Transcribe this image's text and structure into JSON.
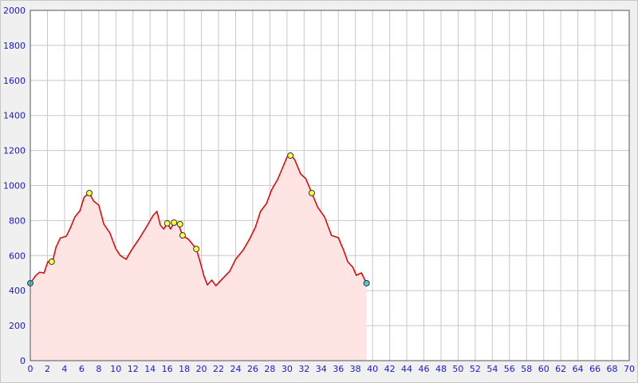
{
  "chart_data": {
    "type": "area",
    "x": [
      0,
      0.65,
      1.1,
      1.6,
      2.05,
      2.6,
      3.0,
      3.5,
      4.2,
      4.7,
      5.2,
      5.8,
      6.3,
      6.9,
      7.4,
      8.0,
      8.6,
      9.3,
      10.0,
      10.5,
      11.2,
      11.8,
      12.8,
      13.7,
      14.35,
      14.8,
      15.2,
      15.6,
      16.0,
      16.4,
      16.8,
      17.3,
      17.8,
      18.5,
      19.4,
      19.9,
      20.3,
      20.7,
      21.2,
      21.7,
      22.4,
      23.3,
      24.0,
      24.9,
      25.6,
      26.3,
      26.9,
      27.6,
      28.2,
      28.9,
      29.5,
      30.0,
      30.5,
      30.9,
      31.6,
      32.2,
      32.9,
      33.6,
      34.4,
      35.2,
      36.0,
      36.6,
      37.1,
      37.7,
      38.1,
      38.7,
      39.3
    ],
    "series": [
      {
        "color": "#e00000",
        "fill": "#ffe4e4",
        "values": [
          442,
          487,
          505,
          500,
          565,
          565,
          647,
          700,
          710,
          760,
          820,
          856,
          934,
          957,
          911,
          888,
          779,
          729,
          638,
          601,
          579,
          629,
          702,
          774,
          829,
          852,
          774,
          752,
          784,
          752,
          788,
          779,
          715,
          692,
          638,
          556,
          483,
          433,
          460,
          428,
          465,
          510,
          579,
          633,
          692,
          761,
          852,
          897,
          975,
          1034,
          1103,
          1162,
          1171,
          1148,
          1066,
          1039,
          957,
          875,
          820,
          715,
          702,
          633,
          565,
          533,
          487,
          501,
          442
        ]
      }
    ],
    "waypoints": {
      "color": "#ffff40",
      "x": [
        2.5,
        6.9,
        16.0,
        16.8,
        17.5,
        17.8,
        19.4,
        30.4,
        32.9
      ],
      "values": [
        565,
        957,
        784,
        788,
        779,
        715,
        638,
        1171,
        957
      ]
    },
    "endpoints": {
      "color": "#40d0e0",
      "x": [
        0,
        39.3
      ],
      "values": [
        442,
        442
      ]
    },
    "xlim": [
      0,
      70
    ],
    "xticks": [
      0,
      2,
      4,
      6,
      8,
      10,
      12,
      14,
      16,
      18,
      20,
      22,
      24,
      26,
      28,
      30,
      32,
      34,
      36,
      38,
      40,
      42,
      44,
      46,
      48,
      50,
      52,
      54,
      56,
      58,
      60,
      62,
      64,
      66,
      68,
      70
    ],
    "ylim": [
      0,
      2000
    ],
    "yticks": [
      0,
      200,
      400,
      600,
      800,
      1000,
      1200,
      1400,
      1600,
      1800,
      2000
    ],
    "grid": true
  }
}
